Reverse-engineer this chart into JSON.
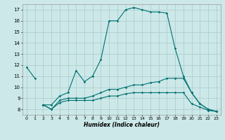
{
  "title": "",
  "xlabel": "Humidex (Indice chaleur)",
  "background_color": "#cce8e8",
  "grid_color": "#b0d0d0",
  "line_color": "#007070",
  "series": [
    {
      "x": [
        0,
        1
      ],
      "y": [
        11.8,
        10.8
      ]
    },
    {
      "x": [
        2,
        3,
        4,
        5,
        6,
        7,
        8,
        9,
        10,
        11,
        12,
        13,
        14,
        15,
        16,
        17,
        18,
        19,
        20,
        21,
        22,
        23
      ],
      "y": [
        8.4,
        8.4,
        9.2,
        9.5,
        11.5,
        10.5,
        11.0,
        12.5,
        16.0,
        16.0,
        17.0,
        17.2,
        17.0,
        16.8,
        16.8,
        16.7,
        13.5,
        11.0,
        9.5,
        8.5,
        8.0,
        7.8
      ]
    },
    {
      "x": [
        2,
        3,
        4,
        5,
        6,
        7,
        8,
        9,
        10,
        11,
        12,
        13,
        14,
        15,
        16,
        17,
        18,
        19,
        20,
        21,
        22,
        23
      ],
      "y": [
        8.4,
        8.0,
        8.8,
        9.0,
        9.0,
        9.0,
        9.2,
        9.5,
        9.8,
        9.8,
        10.0,
        10.2,
        10.2,
        10.4,
        10.5,
        10.8,
        10.8,
        10.8,
        9.5,
        8.5,
        8.0,
        7.8
      ]
    },
    {
      "x": [
        2,
        3,
        4,
        5,
        6,
        7,
        8,
        9,
        10,
        11,
        12,
        13,
        14,
        15,
        16,
        17,
        18,
        19,
        20,
        21,
        22,
        23
      ],
      "y": [
        8.4,
        8.0,
        8.6,
        8.8,
        8.8,
        8.8,
        8.8,
        9.0,
        9.2,
        9.2,
        9.4,
        9.5,
        9.5,
        9.5,
        9.5,
        9.5,
        9.5,
        9.5,
        8.5,
        8.2,
        7.9,
        7.8
      ]
    }
  ],
  "xlim": [
    -0.5,
    23.5
  ],
  "ylim": [
    7.5,
    17.5
  ],
  "yticks": [
    8,
    9,
    10,
    11,
    12,
    13,
    14,
    15,
    16,
    17
  ],
  "xticks": [
    0,
    1,
    2,
    3,
    4,
    5,
    6,
    7,
    8,
    9,
    10,
    11,
    12,
    13,
    14,
    15,
    16,
    17,
    18,
    19,
    20,
    21,
    22,
    23
  ],
  "markersize": 1.8,
  "linewidth": 0.8
}
